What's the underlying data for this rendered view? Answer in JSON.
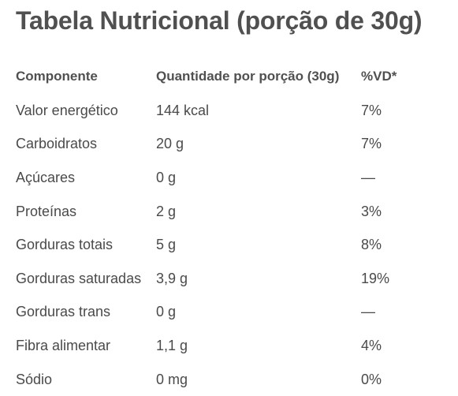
{
  "title": "Tabela Nutricional (porção de 30g)",
  "table": {
    "headers": [
      "Componente",
      "Quantidade por porção (30g)",
      "%VD*"
    ],
    "rows": [
      {
        "component": "Valor energético",
        "amount": "144 kcal",
        "dv": "7%"
      },
      {
        "component": "Carboidratos",
        "amount": "20 g",
        "dv": "7%"
      },
      {
        "component": "Açúcares",
        "amount": "0 g",
        "dv": "—"
      },
      {
        "component": "Proteínas",
        "amount": "2 g",
        "dv": "3%"
      },
      {
        "component": "Gorduras totais",
        "amount": "5 g",
        "dv": "8%"
      },
      {
        "component": "Gorduras saturadas",
        "amount": "3,9 g",
        "dv": "19%"
      },
      {
        "component": "Gorduras trans",
        "amount": "0 g",
        "dv": "—"
      },
      {
        "component": "Fibra alimentar",
        "amount": "1,1 g",
        "dv": "4%"
      },
      {
        "component": "Sódio",
        "amount": "0 mg",
        "dv": "0%"
      }
    ]
  }
}
